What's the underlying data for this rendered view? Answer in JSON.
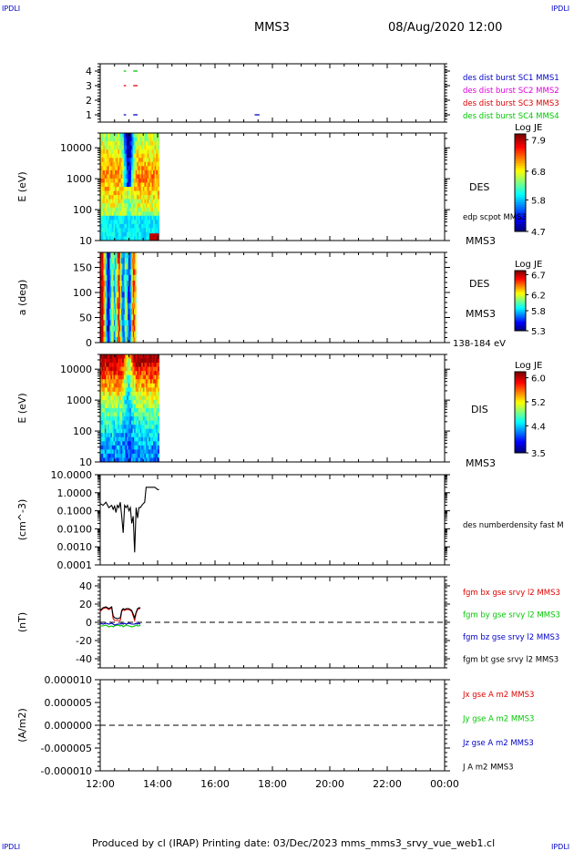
{
  "header": {
    "corner_tl": "IPDLI",
    "corner_tr": "IPDLI",
    "corner_bl": "IPDLI",
    "corner_br": "IPDLI",
    "mission": "MMS3",
    "datetime": "08/Aug/2020 12:00"
  },
  "footer": "Produced by cl (IRAP)   Printing date: 03/Dec/2023   mms_mms3_srvy_vue_web1.cl",
  "colors": {
    "blue": "#0000c8",
    "magenta": "#e000e0",
    "red": "#e00000",
    "green": "#00c800",
    "black": "#000000"
  },
  "chart_data": [
    {
      "id": "burst",
      "type": "scatter",
      "ylim": [
        0.5,
        4.5
      ],
      "yticks": [
        "1",
        "2",
        "3",
        "4"
      ],
      "legend": [
        {
          "label": "des dist burst SC1 MMS1",
          "color": "#0000c8"
        },
        {
          "label": "des dist burst SC2 MMS2",
          "color": "#e000e0"
        },
        {
          "label": "des dist burst SC3 MMS3",
          "color": "#e00000"
        },
        {
          "label": "des dist burst SC4 MMS4",
          "color": "#00c800"
        }
      ],
      "series": [
        {
          "level": 4,
          "color": "#00c800",
          "intervals": [
            [
              12.82,
              12.9
            ],
            [
              13.15,
              13.3
            ]
          ]
        },
        {
          "level": 3,
          "color": "#e00000",
          "intervals": [
            [
              12.82,
              12.9
            ],
            [
              13.15,
              13.3
            ]
          ]
        },
        {
          "level": 1,
          "color": "#0000c8",
          "intervals": [
            [
              12.82,
              12.9
            ],
            [
              13.15,
              13.3
            ],
            [
              17.38,
              17.55
            ]
          ]
        }
      ]
    },
    {
      "id": "des_energy",
      "type": "heatmap",
      "ylabel": "E (eV)",
      "yscale": "log",
      "ylim": [
        10,
        30000
      ],
      "yticks": [
        "10",
        "100",
        "1000",
        "10000"
      ],
      "data_range": [
        12.0,
        14.05
      ],
      "species": "DES",
      "probe": "MMS3",
      "side_label": "edp scpot MMS3",
      "colorbar": {
        "title": "Log JE",
        "min": 4.7,
        "max": 8.1,
        "ticks": [
          "7.9",
          "6.8",
          "5.8",
          "4.7"
        ]
      }
    },
    {
      "id": "des_pitch",
      "type": "heatmap",
      "ylabel": "a (deg)",
      "ylim": [
        0,
        180
      ],
      "yticks": [
        "0",
        "50",
        "100",
        "150"
      ],
      "data_range": [
        12.0,
        13.25
      ],
      "species": "DES",
      "probe": "MMS3",
      "energy_band": "138-184 eV",
      "colorbar": {
        "title": "Log JE",
        "min": 5.3,
        "max": 6.8,
        "ticks": [
          "6.7",
          "6.2",
          "5.8",
          "5.3"
        ]
      }
    },
    {
      "id": "dis_energy",
      "type": "heatmap",
      "ylabel": "E (eV)",
      "yscale": "log",
      "ylim": [
        10,
        30000
      ],
      "yticks": [
        "10",
        "100",
        "1000",
        "10000"
      ],
      "data_range": [
        12.0,
        14.05
      ],
      "species": "DIS",
      "probe": "MMS3",
      "colorbar": {
        "title": "Log JE",
        "min": 3.5,
        "max": 6.2,
        "ticks": [
          "6.0",
          "5.2",
          "4.4",
          "3.5"
        ]
      }
    },
    {
      "id": "density",
      "type": "line",
      "ylabel": "(cm^-3)",
      "yscale": "log",
      "ylim": [
        0.0001,
        10
      ],
      "yticks": [
        "0.0001",
        "0.0010",
        "0.0100",
        "0.1000",
        "1.0000",
        "10.0000"
      ],
      "legend": [
        {
          "label": "des numberdensity fast M",
          "color": "#000000"
        }
      ],
      "x": [
        12.0,
        12.1,
        12.2,
        12.3,
        12.4,
        12.45,
        12.5,
        12.55,
        12.6,
        12.65,
        12.7,
        12.75,
        12.8,
        12.85,
        12.9,
        12.95,
        13.0,
        13.05,
        13.1,
        13.15,
        13.2,
        13.25,
        13.3,
        13.35,
        13.4,
        13.45,
        13.5,
        13.55,
        13.6,
        13.7,
        13.8,
        13.9,
        14.0,
        14.05
      ],
      "y": [
        0.25,
        0.2,
        0.3,
        0.15,
        0.2,
        0.12,
        0.18,
        0.08,
        0.2,
        0.15,
        0.3,
        0.05,
        0.006,
        0.2,
        0.15,
        0.2,
        0.1,
        0.15,
        0.02,
        0.05,
        0.0005,
        0.15,
        0.04,
        0.15,
        0.15,
        0.2,
        0.25,
        0.3,
        2.0,
        2.0,
        2.0,
        2.0,
        1.5,
        1.5
      ]
    },
    {
      "id": "bfield",
      "type": "line",
      "ylabel": "(nT)",
      "ylim": [
        -50,
        50
      ],
      "yticks": [
        "-40",
        "-20",
        "0",
        "20",
        "40"
      ],
      "legend": [
        {
          "label": "fgm bx gse srvy l2 MMS3",
          "color": "#e00000"
        },
        {
          "label": "fgm by gse srvy l2 MMS3",
          "color": "#00c800"
        },
        {
          "label": "fgm bz gse srvy l2 MMS3",
          "color": "#0000c8"
        },
        {
          "label": "fgm bt gse srvy l2 MMS3",
          "color": "#000000"
        }
      ],
      "x": [
        12.0,
        12.1,
        12.2,
        12.3,
        12.4,
        12.45,
        12.5,
        12.6,
        12.7,
        12.75,
        12.8,
        12.85,
        12.9,
        13.0,
        13.1,
        13.2,
        13.25,
        13.3,
        13.35,
        13.4
      ],
      "series": [
        {
          "name": "bx",
          "color": "#e00000",
          "values": [
            12,
            15,
            16,
            14,
            16,
            4,
            2,
            2,
            2,
            12,
            14,
            13,
            14,
            14,
            12,
            2,
            10,
            14,
            15,
            15
          ]
        },
        {
          "name": "by",
          "color": "#00c800",
          "values": [
            -4,
            -4,
            -3,
            -5,
            -4,
            -5,
            -4,
            -3,
            -4,
            -3,
            -5,
            -4,
            -3,
            -4,
            -5,
            -4,
            -3,
            -4,
            -4,
            -3
          ]
        },
        {
          "name": "bz",
          "color": "#0000c8",
          "values": [
            -1,
            -2,
            -1,
            -2,
            -1,
            -2,
            -3,
            -2,
            -2,
            -1,
            -2,
            -1,
            -2,
            -1,
            -2,
            -2,
            -1,
            -2,
            -1,
            -2
          ]
        },
        {
          "name": "bt",
          "color": "#000000",
          "values": [
            13,
            16,
            17,
            15,
            17,
            7,
            5,
            4,
            5,
            13,
            15,
            14,
            15,
            15,
            13,
            5,
            11,
            15,
            16,
            16
          ]
        }
      ]
    },
    {
      "id": "current",
      "type": "line",
      "ylabel": "(A/m2)",
      "ylim": [
        -1e-05,
        1e-05
      ],
      "yticks": [
        "-0.000010",
        "-0.000005",
        "0.000000",
        "0.000005",
        "0.000010"
      ],
      "legend": [
        {
          "label": "Jx gse A m2 MMS3",
          "color": "#e00000"
        },
        {
          "label": "Jy gse A m2 MMS3",
          "color": "#00c800"
        },
        {
          "label": "Jz gse A m2 MMS3",
          "color": "#0000c8"
        },
        {
          "label": "J A m2 MMS3",
          "color": "#000000"
        }
      ],
      "series": []
    }
  ],
  "time_axis": {
    "range_hours": [
      12,
      24
    ],
    "tick_labels": [
      "12:00",
      "14:00",
      "16:00",
      "18:00",
      "20:00",
      "22:00",
      "00:00"
    ]
  }
}
